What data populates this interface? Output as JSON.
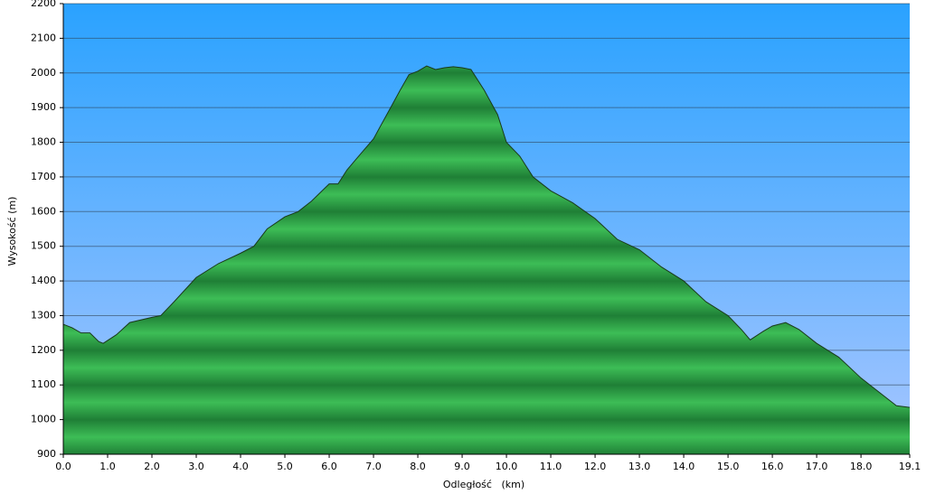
{
  "chart_data": {
    "type": "area",
    "x_label": "Odległość   (km)",
    "y_label": "Wysokość (m)",
    "color": "#2aa84a",
    "line_color": "#1a3a1a",
    "grid": true,
    "xlim": [
      0,
      19.1
    ],
    "ylim": [
      900,
      2200
    ],
    "xticks": [
      {
        "value": 0,
        "label": "0.0"
      },
      {
        "value": 1,
        "label": "1.0"
      },
      {
        "value": 2,
        "label": "2.0"
      },
      {
        "value": 3,
        "label": "3.0"
      },
      {
        "value": 4,
        "label": "4.0"
      },
      {
        "value": 5,
        "label": "5.0"
      },
      {
        "value": 6,
        "label": "6.0"
      },
      {
        "value": 7,
        "label": "7.0"
      },
      {
        "value": 8,
        "label": "8.0"
      },
      {
        "value": 9,
        "label": "9.0"
      },
      {
        "value": 10,
        "label": "10.0"
      },
      {
        "value": 11,
        "label": "11.0"
      },
      {
        "value": 12,
        "label": "12.0"
      },
      {
        "value": 13,
        "label": "13.0"
      },
      {
        "value": 14,
        "label": "14.0"
      },
      {
        "value": 15,
        "label": "15.0"
      },
      {
        "value": 16,
        "label": "16.0"
      },
      {
        "value": 17,
        "label": "17.0"
      },
      {
        "value": 18,
        "label": "18.0"
      },
      19.1
    ],
    "yticks": [
      900,
      1000,
      1100,
      1200,
      1300,
      1400,
      1500,
      1600,
      1700,
      1800,
      1900,
      2000,
      2100,
      2200
    ],
    "x": [
      0,
      0.2,
      0.4,
      0.6,
      0.8,
      0.9,
      1.2,
      1.5,
      2.0,
      2.2,
      2.5,
      3.0,
      3.5,
      4.0,
      4.3,
      4.6,
      5.0,
      5.3,
      5.6,
      6.0,
      6.2,
      6.4,
      6.6,
      7.0,
      7.3,
      7.6,
      7.8,
      8.0,
      8.2,
      8.4,
      8.6,
      8.8,
      9.0,
      9.2,
      9.5,
      9.8,
      10.0,
      10.3,
      10.6,
      11.0,
      11.5,
      12.0,
      12.5,
      13.0,
      13.5,
      14.0,
      14.5,
      15.0,
      15.3,
      15.5,
      15.8,
      16.0,
      16.3,
      16.6,
      17.0,
      17.5,
      18.0,
      18.5,
      18.8,
      19.1
    ],
    "values": [
      1275,
      1265,
      1250,
      1250,
      1225,
      1220,
      1245,
      1280,
      1295,
      1300,
      1340,
      1410,
      1450,
      1480,
      1500,
      1550,
      1585,
      1600,
      1630,
      1680,
      1680,
      1720,
      1750,
      1810,
      1880,
      1950,
      1995,
      2005,
      2020,
      2010,
      2015,
      2018,
      2015,
      2010,
      1950,
      1880,
      1800,
      1760,
      1700,
      1660,
      1625,
      1580,
      1520,
      1490,
      1440,
      1400,
      1340,
      1300,
      1260,
      1230,
      1255,
      1270,
      1280,
      1260,
      1220,
      1180,
      1120,
      1070,
      1040,
      1035
    ]
  }
}
